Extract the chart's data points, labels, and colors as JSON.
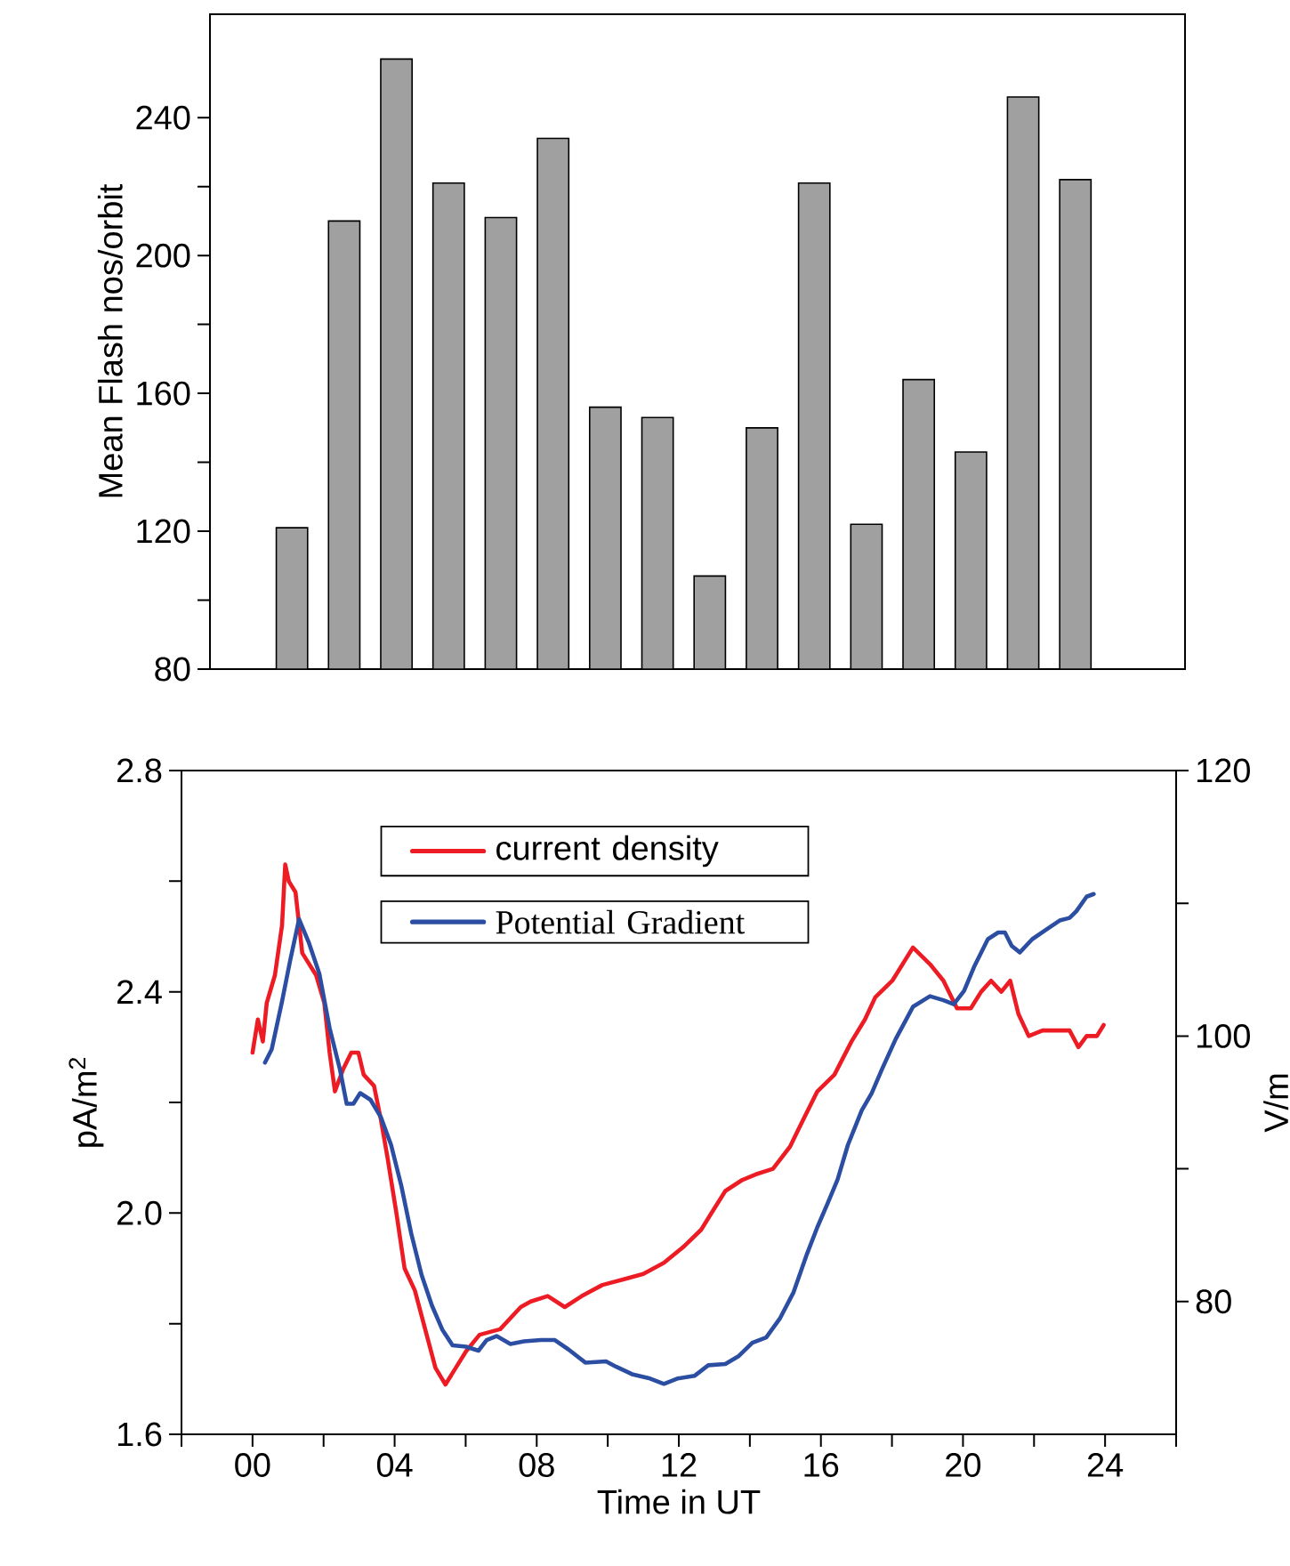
{
  "chart_data": [
    {
      "type": "bar",
      "ylabel": "Mean Flash nos/orbit",
      "categories": [
        null,
        null,
        null,
        null,
        null,
        null,
        null,
        null,
        null,
        null,
        null,
        null,
        null,
        null,
        null,
        null
      ],
      "values": [
        121,
        210,
        257,
        221,
        211,
        234,
        156,
        153,
        107,
        150,
        221,
        122,
        164,
        143,
        246,
        222
      ],
      "color": "#a0a0a0",
      "ylim": [
        80,
        270
      ],
      "yticks": [
        80,
        120,
        160,
        200,
        240
      ],
      "tick_labels": "y"
    },
    {
      "type": "line",
      "xlabel": "Time in UT",
      "ylabel": "pA/m$^{2}$",
      "y2label": "V/m",
      "xlim": [
        -2,
        26
      ],
      "xticks": [
        {
          "value": -2,
          "label": null
        },
        {
          "value": 0,
          "label": "00"
        },
        {
          "value": 2,
          "label": null
        },
        {
          "value": 4,
          "label": "04"
        },
        {
          "value": 6,
          "label": null
        },
        {
          "value": 8,
          "label": "08"
        },
        {
          "value": 10,
          "label": null
        },
        {
          "value": 12,
          "label": "12"
        },
        {
          "value": 14,
          "label": null
        },
        {
          "value": 16,
          "label": "16"
        },
        {
          "value": 18,
          "label": null
        },
        {
          "value": 20,
          "label": "20"
        },
        {
          "value": 22,
          "label": null
        },
        {
          "value": 24,
          "label": "24"
        },
        {
          "value": 26,
          "label": null
        }
      ],
      "ylim": [
        1.6,
        2.8
      ],
      "yticks": [
        {
          "value": 1.6,
          "label": "1.6"
        },
        {
          "value": 1.8,
          "label": null
        },
        {
          "value": 2.0,
          "label": "2.0"
        },
        {
          "value": 2.2,
          "label": null
        },
        {
          "value": 2.4,
          "label": "2.4"
        },
        {
          "value": 2.6,
          "label": null
        },
        {
          "value": 2.8,
          "label": "2.8"
        }
      ],
      "y2lim": [
        70,
        120
      ],
      "y2ticks": [
        80,
        {
          "value": 90,
          "label": null
        },
        100,
        {
          "value": 110,
          "label": null
        },
        120
      ],
      "legend": "top left",
      "series": [
        {
          "name": "current density",
          "color": "#ed1c24",
          "x": [
            0.0,
            0.15,
            0.29,
            0.4,
            0.63,
            0.83,
            0.92,
            1.02,
            1.21,
            1.4,
            1.79,
            2.02,
            2.17,
            2.32,
            2.55,
            2.78,
            2.98,
            3.13,
            3.42,
            3.61,
            3.8,
            4.05,
            4.28,
            4.57,
            4.86,
            5.15,
            5.43,
            5.72,
            6.01,
            6.39,
            6.97,
            7.55,
            7.83,
            8.31,
            8.79,
            9.27,
            9.85,
            10.43,
            11.0,
            11.58,
            12.15,
            12.63,
            12.92,
            13.31,
            13.79,
            14.17,
            14.65,
            15.13,
            15.51,
            15.9,
            16.38,
            16.86,
            17.24,
            17.53,
            18.01,
            18.59,
            19.07,
            19.45,
            19.83,
            20.22,
            20.51,
            20.79,
            21.08,
            21.33,
            21.56,
            21.85,
            22.24,
            22.62,
            23.0,
            23.25,
            23.48,
            23.77,
            23.96
          ],
          "values": [
            2.29,
            2.35,
            2.31,
            2.38,
            2.43,
            2.52,
            2.63,
            2.6,
            2.58,
            2.47,
            2.43,
            2.38,
            2.29,
            2.22,
            2.26,
            2.29,
            2.29,
            2.25,
            2.23,
            2.17,
            2.1,
            2.0,
            1.9,
            1.86,
            1.79,
            1.72,
            1.69,
            1.72,
            1.75,
            1.78,
            1.79,
            1.83,
            1.84,
            1.85,
            1.83,
            1.85,
            1.87,
            1.88,
            1.89,
            1.91,
            1.94,
            1.97,
            2.0,
            2.04,
            2.06,
            2.07,
            2.08,
            2.12,
            2.17,
            2.22,
            2.25,
            2.31,
            2.35,
            2.39,
            2.42,
            2.48,
            2.45,
            2.42,
            2.37,
            2.37,
            2.4,
            2.42,
            2.4,
            2.42,
            2.36,
            2.32,
            2.33,
            2.33,
            2.33,
            2.3,
            2.32,
            2.32,
            2.34
          ]
        },
        {
          "name": "Potential Gradient",
          "color": "#2b4ea2",
          "axis": "y2",
          "x": [
            0.35,
            0.54,
            0.83,
            1.06,
            1.31,
            1.59,
            1.88,
            2.17,
            2.46,
            2.65,
            2.84,
            3.03,
            3.32,
            3.61,
            3.9,
            4.19,
            4.47,
            4.76,
            5.05,
            5.34,
            5.63,
            6.01,
            6.36,
            6.59,
            6.87,
            7.26,
            7.64,
            8.12,
            8.51,
            8.89,
            9.37,
            9.95,
            10.23,
            10.71,
            11.19,
            11.58,
            11.96,
            12.44,
            12.83,
            13.31,
            13.69,
            14.07,
            14.46,
            14.84,
            15.23,
            15.61,
            15.9,
            16.19,
            16.47,
            16.76,
            17.15,
            17.43,
            17.72,
            18.11,
            18.59,
            19.07,
            19.45,
            19.74,
            20.03,
            20.31,
            20.7,
            20.99,
            21.18,
            21.37,
            21.6,
            21.95,
            22.33,
            22.72,
            23.0,
            23.19,
            23.48,
            23.68
          ],
          "values": [
            98.0,
            99.0,
            102.6,
            105.7,
            108.8,
            107.0,
            104.7,
            100.6,
            97.5,
            94.9,
            94.9,
            95.7,
            95.2,
            93.9,
            91.8,
            88.7,
            85.1,
            82.0,
            79.7,
            77.9,
            76.7,
            76.6,
            76.3,
            77.1,
            77.4,
            76.8,
            77.0,
            77.1,
            77.1,
            76.4,
            75.4,
            75.5,
            75.1,
            74.5,
            74.2,
            73.8,
            74.2,
            74.4,
            75.2,
            75.3,
            75.9,
            76.9,
            77.3,
            78.7,
            80.7,
            83.6,
            85.6,
            87.4,
            89.2,
            91.8,
            94.4,
            95.7,
            97.5,
            99.8,
            102.2,
            103.0,
            102.7,
            102.4,
            103.4,
            105.2,
            107.3,
            107.8,
            107.8,
            106.8,
            106.3,
            107.3,
            108.0,
            108.7,
            108.9,
            109.4,
            110.5,
            110.7
          ]
        }
      ]
    }
  ]
}
